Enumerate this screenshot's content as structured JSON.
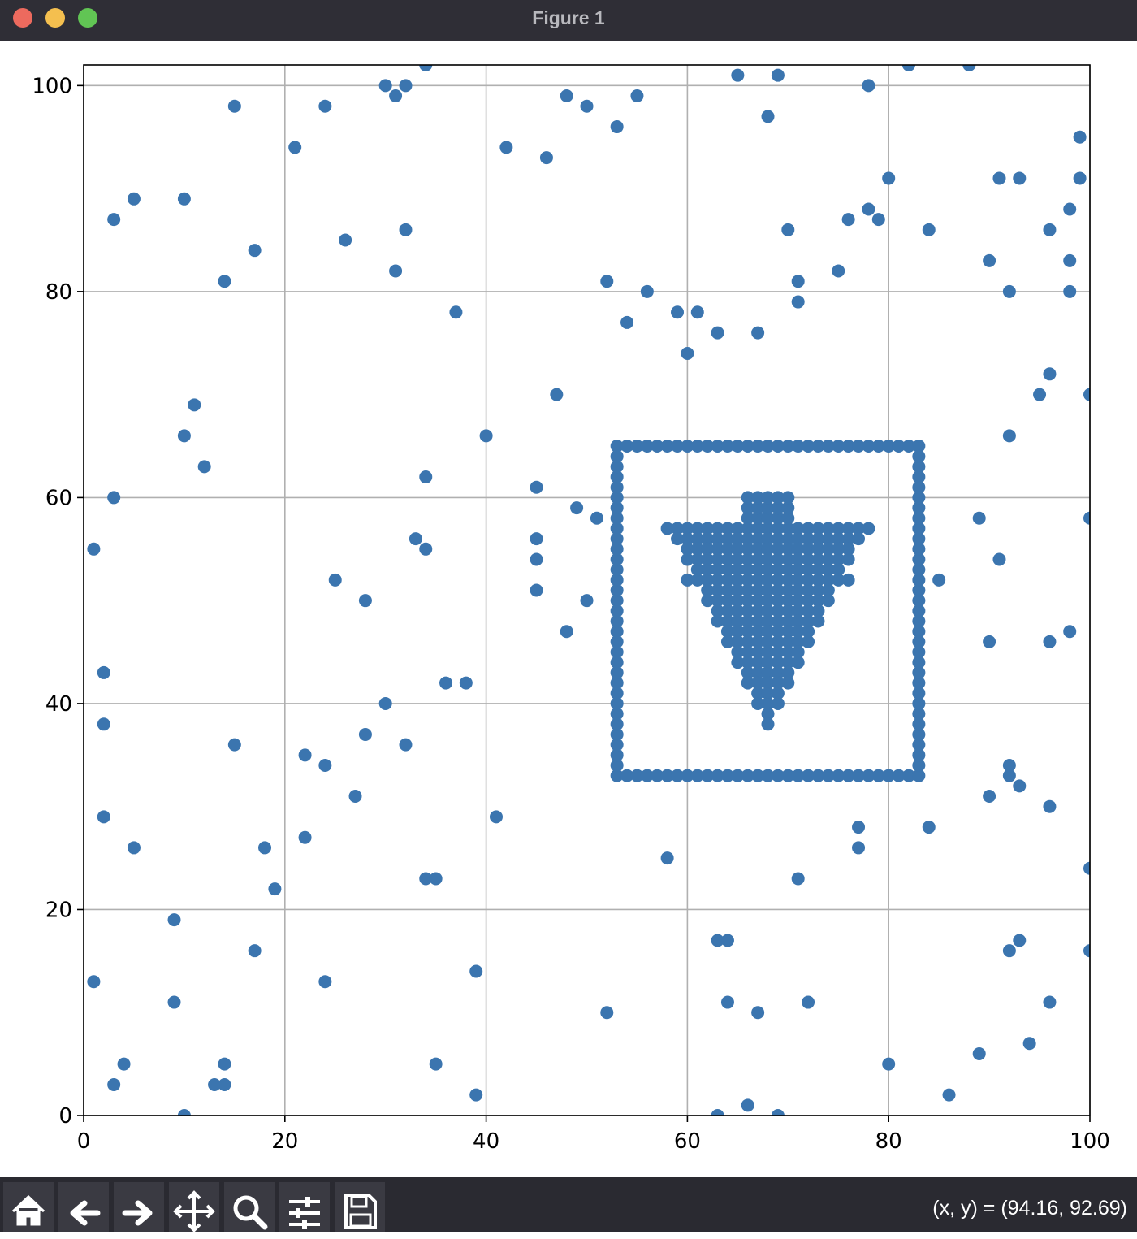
{
  "window": {
    "title": "Figure 1",
    "status": "(x, y) = (94.16, 92.69)"
  },
  "chart_data": {
    "type": "scatter",
    "xlim": [
      0,
      100
    ],
    "ylim": [
      0,
      102
    ],
    "xticks": [
      0,
      20,
      40,
      60,
      80,
      100
    ],
    "yticks": [
      0,
      20,
      40,
      60,
      80,
      100
    ],
    "grid": true,
    "series": [
      {
        "color": "#3b75af",
        "x": [
          3,
          5,
          10,
          15,
          24,
          21,
          30,
          31,
          32,
          34,
          17,
          14,
          26,
          32,
          31,
          37,
          42,
          46,
          48,
          50,
          53,
          55,
          52,
          56,
          54,
          59,
          61,
          63,
          60,
          67,
          65,
          69,
          68,
          70,
          71,
          71,
          75,
          76,
          78,
          79,
          78,
          80,
          82,
          88,
          84,
          90,
          92,
          91,
          93,
          96,
          98,
          98,
          98,
          99,
          99,
          96,
          95,
          100,
          92,
          47,
          40,
          11,
          10,
          12,
          3,
          1,
          34,
          45,
          49,
          51,
          45,
          45,
          45,
          33,
          34,
          25,
          28,
          50,
          48,
          2,
          2,
          36,
          38,
          30,
          28,
          15,
          32,
          22,
          24,
          27,
          2,
          41,
          5,
          18,
          22,
          19,
          34,
          35,
          9,
          17,
          1,
          24,
          9,
          39,
          4,
          14,
          3,
          13,
          14,
          10,
          35,
          39,
          52,
          58,
          63,
          64,
          64,
          67,
          72,
          66,
          63,
          69,
          71,
          77,
          77,
          84,
          85,
          80,
          86,
          89,
          94,
          96,
          92,
          93,
          92,
          92,
          93,
          90,
          96,
          100,
          100,
          89,
          91,
          90,
          96,
          98,
          100,
          60,
          76
        ],
        "values": [
          87,
          89,
          89,
          98,
          98,
          94,
          100,
          99,
          100,
          102,
          84,
          81,
          85,
          86,
          82,
          78,
          94,
          93,
          99,
          98,
          96,
          99,
          81,
          80,
          77,
          78,
          78,
          76,
          74,
          76,
          101,
          101,
          97,
          86,
          81,
          79,
          82,
          87,
          88,
          87,
          100,
          91,
          102,
          102,
          86,
          83,
          80,
          91,
          91,
          86,
          88,
          83,
          80,
          95,
          91,
          72,
          70,
          70,
          66,
          70,
          66,
          69,
          66,
          63,
          60,
          55,
          62,
          61,
          59,
          58,
          56,
          54,
          51,
          56,
          55,
          52,
          50,
          50,
          47,
          43,
          38,
          42,
          42,
          40,
          37,
          36,
          36,
          35,
          34,
          31,
          29,
          29,
          26,
          26,
          27,
          22,
          23,
          23,
          19,
          16,
          13,
          13,
          11,
          14,
          5,
          5,
          3,
          3,
          3,
          0,
          5,
          2,
          10,
          25,
          17,
          17,
          11,
          10,
          11,
          1,
          0,
          0,
          23,
          28,
          26,
          28,
          52,
          5,
          2,
          6,
          7,
          11,
          16,
          17,
          34,
          33,
          32,
          31,
          30,
          24,
          16,
          58,
          54,
          46,
          46,
          47,
          58,
          52,
          52
        ]
      },
      {
        "color": "#3b75af",
        "x": [
          53,
          54,
          55,
          56,
          57,
          58,
          59,
          60,
          61,
          62,
          63,
          64,
          65,
          66,
          67,
          68,
          69,
          70,
          71,
          72,
          73,
          74,
          75,
          76,
          77,
          78,
          79,
          80,
          81,
          82,
          83,
          53,
          54,
          55,
          56,
          57,
          58,
          59,
          60,
          61,
          62,
          63,
          64,
          65,
          66,
          67,
          68,
          69,
          70,
          71,
          72,
          73,
          74,
          75,
          76,
          77,
          78,
          79,
          80,
          81,
          82,
          83,
          53,
          53,
          53,
          53,
          53,
          53,
          53,
          53,
          53,
          53,
          53,
          53,
          53,
          53,
          53,
          53,
          53,
          53,
          53,
          53,
          53,
          53,
          53,
          53,
          53,
          53,
          53,
          53,
          53,
          53,
          53,
          83,
          83,
          83,
          83,
          83,
          83,
          83,
          83,
          83,
          83,
          83,
          83,
          83,
          83,
          83,
          83,
          83,
          83,
          83,
          83,
          83,
          83,
          83,
          83,
          83,
          83,
          83,
          83,
          83,
          83,
          83
        ],
        "values": [
          65,
          65,
          65,
          65,
          65,
          65,
          65,
          65,
          65,
          65,
          65,
          65,
          65,
          65,
          65,
          65,
          65,
          65,
          65,
          65,
          65,
          65,
          65,
          65,
          65,
          65,
          65,
          65,
          65,
          65,
          65,
          33,
          33,
          33,
          33,
          33,
          33,
          33,
          33,
          33,
          33,
          33,
          33,
          33,
          33,
          33,
          33,
          33,
          33,
          33,
          33,
          33,
          33,
          33,
          33,
          33,
          33,
          33,
          33,
          33,
          33,
          33,
          34,
          35,
          36,
          37,
          38,
          39,
          40,
          41,
          42,
          43,
          44,
          45,
          46,
          47,
          48,
          49,
          50,
          51,
          52,
          53,
          54,
          55,
          56,
          57,
          58,
          59,
          60,
          61,
          62,
          63,
          64,
          34,
          35,
          36,
          37,
          38,
          39,
          40,
          41,
          42,
          43,
          44,
          45,
          46,
          47,
          48,
          49,
          50,
          51,
          52,
          53,
          54,
          55,
          56,
          57,
          58,
          59,
          60,
          61,
          62,
          63,
          64
        ]
      },
      {
        "color": "#3b75af",
        "x": [
          58,
          59,
          60,
          61,
          62,
          63,
          64,
          65,
          66,
          67,
          68,
          69,
          70,
          71,
          72,
          73,
          74,
          75,
          76,
          77,
          78,
          59,
          60,
          61,
          62,
          63,
          64,
          65,
          66,
          67,
          68,
          69,
          70,
          71,
          72,
          73,
          74,
          75,
          76,
          77,
          60,
          61,
          62,
          63,
          64,
          65,
          66,
          67,
          68,
          69,
          70,
          71,
          72,
          73,
          74,
          75,
          76,
          60,
          61,
          62,
          63,
          64,
          65,
          66,
          67,
          68,
          69,
          70,
          71,
          72,
          73,
          74,
          75,
          76,
          61,
          62,
          63,
          64,
          65,
          66,
          67,
          68,
          69,
          70,
          71,
          72,
          73,
          74,
          75,
          61,
          62,
          63,
          64,
          65,
          66,
          67,
          68,
          69,
          70,
          71,
          72,
          73,
          74,
          75,
          62,
          63,
          64,
          65,
          66,
          67,
          68,
          69,
          70,
          71,
          72,
          73,
          74,
          62,
          63,
          64,
          65,
          66,
          67,
          68,
          69,
          70,
          71,
          72,
          73,
          74,
          63,
          64,
          65,
          66,
          67,
          68,
          69,
          70,
          71,
          72,
          73,
          63,
          64,
          65,
          66,
          67,
          68,
          69,
          70,
          71,
          72,
          73,
          64,
          65,
          66,
          67,
          68,
          69,
          70,
          71,
          72,
          64,
          65,
          66,
          67,
          68,
          69,
          70,
          71,
          72,
          65,
          66,
          67,
          68,
          69,
          70,
          71,
          65,
          66,
          67,
          68,
          69,
          70,
          71,
          66,
          67,
          68,
          69,
          70,
          66,
          67,
          68,
          69,
          70,
          67,
          68,
          69,
          67,
          68,
          69,
          68,
          68,
          66,
          67,
          68,
          69,
          70,
          66,
          67,
          68,
          69,
          70,
          66,
          67,
          68,
          69,
          70
        ],
        "values": [
          57,
          57,
          57,
          57,
          57,
          57,
          57,
          57,
          57,
          57,
          57,
          57,
          57,
          57,
          57,
          57,
          57,
          57,
          57,
          57,
          57,
          56,
          56,
          56,
          56,
          56,
          56,
          56,
          56,
          56,
          56,
          56,
          56,
          56,
          56,
          56,
          56,
          56,
          56,
          56,
          55,
          55,
          55,
          55,
          55,
          55,
          55,
          55,
          55,
          55,
          55,
          55,
          55,
          55,
          55,
          55,
          55,
          54,
          54,
          54,
          54,
          54,
          54,
          54,
          54,
          54,
          54,
          54,
          54,
          54,
          54,
          54,
          54,
          54,
          53,
          53,
          53,
          53,
          53,
          53,
          53,
          53,
          53,
          53,
          53,
          53,
          53,
          53,
          53,
          52,
          52,
          52,
          52,
          52,
          52,
          52,
          52,
          52,
          52,
          52,
          52,
          52,
          52,
          52,
          51,
          51,
          51,
          51,
          51,
          51,
          51,
          51,
          51,
          51,
          51,
          51,
          51,
          50,
          50,
          50,
          50,
          50,
          50,
          50,
          50,
          50,
          50,
          50,
          50,
          50,
          49,
          49,
          49,
          49,
          49,
          49,
          49,
          49,
          49,
          49,
          49,
          48,
          48,
          48,
          48,
          48,
          48,
          48,
          48,
          48,
          48,
          48,
          47,
          47,
          47,
          47,
          47,
          47,
          47,
          47,
          47,
          46,
          46,
          46,
          46,
          46,
          46,
          46,
          46,
          46,
          45,
          45,
          45,
          45,
          45,
          45,
          45,
          44,
          44,
          44,
          44,
          44,
          44,
          44,
          43,
          43,
          43,
          43,
          43,
          42,
          42,
          42,
          42,
          42,
          41,
          41,
          41,
          40,
          40,
          40,
          39,
          38,
          58,
          58,
          58,
          58,
          58,
          59,
          59,
          59,
          59,
          59,
          60,
          60,
          60,
          60,
          60
        ]
      }
    ]
  }
}
